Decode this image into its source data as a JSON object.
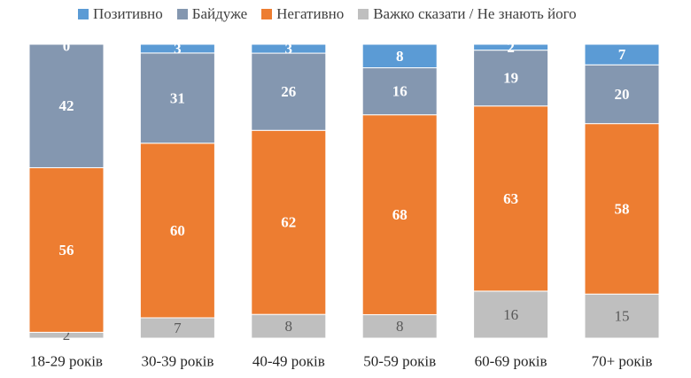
{
  "chart_data": {
    "type": "bar",
    "stacked": true,
    "normalized": "percent",
    "categories": [
      "18-29 років",
      "30-39 років",
      "40-49 років",
      "50-59 років",
      "60-69 років",
      "70+ років"
    ],
    "series": [
      {
        "name": "Важко сказати / Не знають його",
        "color": "#BFBFBF",
        "label_color": "#595959",
        "values": [
          2,
          7,
          8,
          8,
          16,
          15
        ]
      },
      {
        "name": "Негативно",
        "color": "#ED7D31",
        "label_color": "#FFFFFF",
        "values": [
          56,
          60,
          62,
          68,
          63,
          58
        ]
      },
      {
        "name": "Байдуже",
        "color": "#8497B0",
        "label_color": "#FFFFFF",
        "values": [
          42,
          31,
          26,
          16,
          19,
          20
        ]
      },
      {
        "name": "Позитивно",
        "color": "#5B9BD5",
        "label_color": "#FFFFFF",
        "values": [
          0,
          3,
          3,
          8,
          2,
          7
        ]
      }
    ],
    "legend_order": [
      "Позитивно",
      "Байдуже",
      "Негативно",
      "Важко сказати / Не знають його"
    ],
    "legend_position": "top",
    "title": "",
    "xlabel": "",
    "ylabel": "",
    "grid": false
  }
}
